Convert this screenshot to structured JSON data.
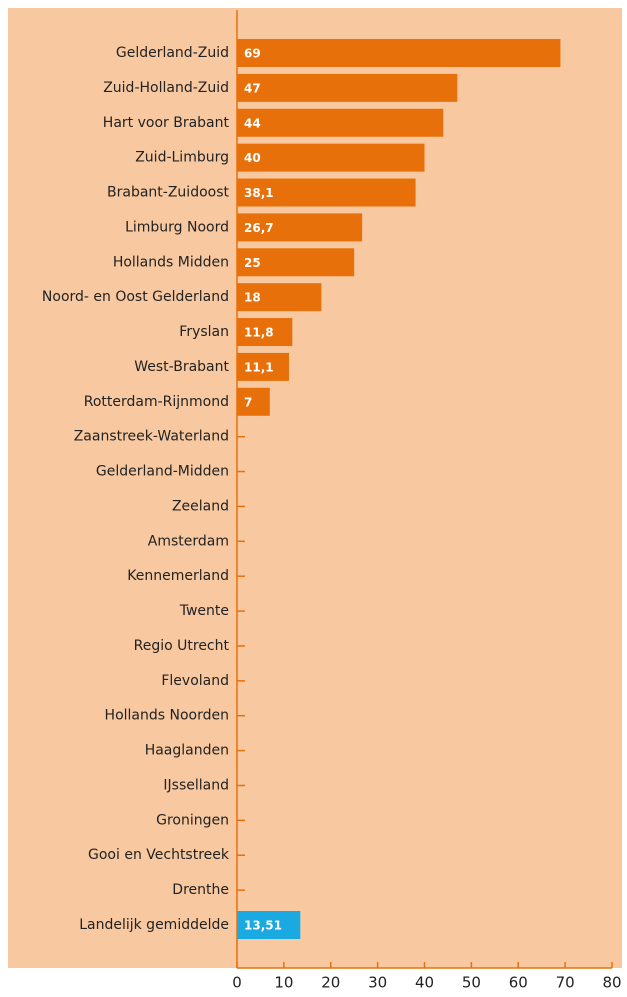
{
  "chart_data": {
    "type": "bar",
    "orientation": "horizontal",
    "categories": [
      "Gelderland-Zuid",
      "Zuid-Holland-Zuid",
      "Hart voor Brabant",
      "Zuid-Limburg",
      "Brabant-Zuidoost",
      "Limburg Noord",
      "Hollands Midden",
      "Noord- en Oost Gelderland",
      "Fryslan",
      "West-Brabant",
      "Rotterdam-Rijnmond",
      "Zaanstreek-Waterland",
      "Gelderland-Midden",
      "Zeeland",
      "Amsterdam",
      "Kennemerland",
      "Twente",
      "Regio Utrecht",
      "Flevoland",
      "Hollands Noorden",
      "Haaglanden",
      "IJsselland",
      "Groningen",
      "Gooi en Vechtstreek",
      "Drenthe",
      "Landelijk gemiddelde"
    ],
    "values": [
      69,
      47,
      44,
      40,
      38.1,
      26.7,
      25,
      18,
      11.8,
      11.1,
      7,
      null,
      null,
      null,
      null,
      null,
      null,
      null,
      null,
      null,
      null,
      null,
      null,
      null,
      null,
      13.51
    ],
    "value_labels": [
      "69",
      "47",
      "44",
      "40",
      "38,1",
      "26,7",
      "25",
      "18",
      "11,8",
      "11,1",
      "7",
      null,
      null,
      null,
      null,
      null,
      null,
      null,
      null,
      null,
      null,
      null,
      null,
      null,
      null,
      "13,51"
    ],
    "colors": [
      "#e8700a",
      "#e8700a",
      "#e8700a",
      "#e8700a",
      "#e8700a",
      "#e8700a",
      "#e8700a",
      "#e8700a",
      "#e8700a",
      "#e8700a",
      "#e8700a",
      "#e8700a",
      "#e8700a",
      "#e8700a",
      "#e8700a",
      "#e8700a",
      "#e8700a",
      "#e8700a",
      "#e8700a",
      "#e8700a",
      "#e8700a",
      "#e8700a",
      "#e8700a",
      "#e8700a",
      "#e8700a",
      "#1ba9e1"
    ],
    "xlim": [
      0,
      80
    ],
    "xticks": [
      0,
      10,
      20,
      30,
      40,
      50,
      60,
      70,
      80
    ]
  }
}
